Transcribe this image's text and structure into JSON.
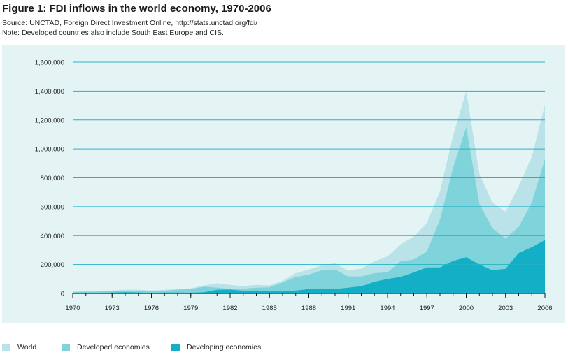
{
  "header": {
    "title": "Figure 1: FDI inflows in the world economy, 1970-2006",
    "source": "Source: UNCTAD, Foreign Direct Investment Online, http://stats.unctad.org/fdi/",
    "note": "Note: Developed countries also include South East Europe and CIS."
  },
  "colors": {
    "background": "#e4f4f5",
    "gridline": "#27b2c6",
    "world": "#b9e3e8",
    "developed": "#7fd3db",
    "developing": "#12afc6"
  },
  "chart_data": {
    "type": "area",
    "title": "Figure 1: FDI inflows in the world economy, 1970-2006",
    "x": [
      1970,
      1971,
      1972,
      1973,
      1974,
      1975,
      1976,
      1977,
      1978,
      1979,
      1980,
      1981,
      1982,
      1983,
      1984,
      1985,
      1986,
      1987,
      1988,
      1989,
      1990,
      1991,
      1992,
      1993,
      1994,
      1995,
      1996,
      1997,
      1998,
      1999,
      2000,
      2001,
      2002,
      2003,
      2004,
      2005,
      2006
    ],
    "xticks": [
      "1970",
      "1973",
      "1976",
      "1979",
      "1982",
      "1985",
      "1988",
      "1991",
      "1994",
      "1997",
      "2000",
      "2003",
      "2006"
    ],
    "yticks": [
      "0",
      "200,000",
      "400,000",
      "600,000",
      "800,000",
      "1,000,000",
      "1,200,000",
      "1,400,000",
      "1,600,000"
    ],
    "ylim": [
      0,
      1600000
    ],
    "grid": true,
    "legend_position": "bottom",
    "series": [
      {
        "name": "World",
        "color": "#b9e3e8",
        "values": [
          13000,
          15000,
          16000,
          21000,
          26000,
          26000,
          21000,
          25000,
          32000,
          35000,
          55000,
          70000,
          59000,
          51000,
          60000,
          56000,
          87000,
          140000,
          165000,
          196000,
          208000,
          157000,
          172000,
          222000,
          256000,
          341000,
          392000,
          488000,
          706000,
          1092000,
          1400000,
          826000,
          628000,
          566000,
          742000,
          946000,
          1306000
        ]
      },
      {
        "name": "Developed economies",
        "color": "#7fd3db",
        "values": [
          10000,
          12000,
          13000,
          17000,
          18000,
          19000,
          17000,
          18000,
          26000,
          30000,
          47000,
          40000,
          32000,
          33000,
          40000,
          42000,
          77000,
          113000,
          130000,
          160000,
          166000,
          117000,
          118000,
          140000,
          146000,
          222000,
          235000,
          290000,
          510000,
          870000,
          1150000,
          620000,
          450000,
          380000,
          460000,
          630000,
          930000
        ]
      },
      {
        "name": "Developing economies",
        "color": "#12afc6",
        "values": [
          3000,
          4000,
          4000,
          6000,
          8000,
          7000,
          4000,
          6000,
          6000,
          5000,
          8000,
          25000,
          27000,
          18000,
          20000,
          14000,
          14000,
          20000,
          30000,
          30000,
          30000,
          40000,
          50000,
          80000,
          100000,
          115000,
          145000,
          180000,
          180000,
          225000,
          250000,
          200000,
          160000,
          170000,
          280000,
          320000,
          370000
        ]
      }
    ]
  },
  "legend": {
    "items": [
      {
        "label": "World",
        "color": "#b9e3e8"
      },
      {
        "label": "Developed economies",
        "color": "#7fd3db"
      },
      {
        "label": "Developing economies",
        "color": "#12afc6"
      }
    ]
  }
}
